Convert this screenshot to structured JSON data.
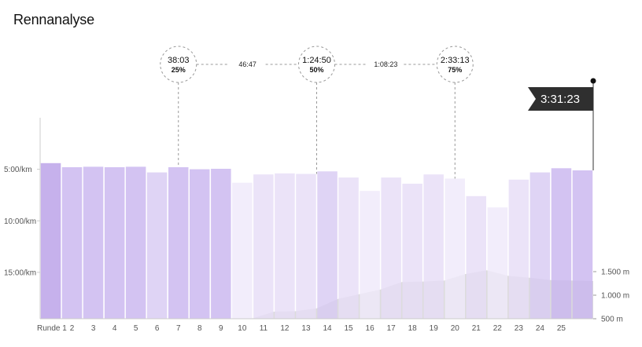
{
  "title": "Rennanalyse",
  "colors": {
    "bar_levels": [
      "#b9a0e8",
      "#c9b6ef",
      "#d8cbf3",
      "#e6ddf7",
      "#efe9fa"
    ],
    "elevation_fill": "#dcdcdc",
    "flag": "#2f2f2f",
    "axis": "#cccccc"
  },
  "chart_data": {
    "type": "bar",
    "title": "Rennanalyse",
    "categories": [
      "Runde 1",
      "2",
      "3",
      "4",
      "5",
      "6",
      "7",
      "8",
      "9",
      "10",
      "11",
      "12",
      "13",
      "14",
      "15",
      "16",
      "17",
      "18",
      "19",
      "20",
      "21",
      "22",
      "23",
      "24",
      "25",
      ""
    ],
    "x_tick_labels": [
      "Runde 1",
      "2",
      "3",
      "4",
      "5",
      "6",
      "7",
      "8",
      "9",
      "10",
      "11",
      "12",
      "13",
      "14",
      "15",
      "16",
      "17",
      "18",
      "19",
      "20",
      "21",
      "22",
      "23",
      "24",
      "25"
    ],
    "pace_axis": {
      "tick_labels": [
        "5:00/km",
        "10:00/km",
        "15:00/km"
      ],
      "tick_values": [
        5,
        10,
        15
      ],
      "range": [
        0,
        19.5
      ]
    },
    "pace_min_per_km": [
      4.4,
      4.8,
      4.75,
      4.8,
      4.75,
      5.3,
      4.8,
      5.0,
      4.95,
      6.3,
      5.5,
      5.4,
      5.45,
      5.2,
      5.8,
      7.1,
      5.8,
      6.4,
      5.5,
      5.9,
      7.6,
      8.7,
      6.0,
      5.3,
      4.9,
      5.1
    ],
    "bar_shade_level": [
      0,
      1,
      1,
      1,
      1,
      2,
      1,
      1,
      1,
      4,
      3,
      3,
      3,
      2,
      3,
      4,
      3,
      3,
      3,
      4,
      3,
      4,
      3,
      2,
      1,
      1
    ],
    "elevation_axis": {
      "tick_labels": [
        "1.500 m",
        "1.000 m",
        "500 m"
      ],
      "tick_values": [
        1500,
        1000,
        500
      ],
      "range": [
        500,
        1600
      ]
    },
    "elevation_m": [
      500,
      500,
      500,
      500,
      500,
      500,
      500,
      500,
      500,
      500,
      510,
      650,
      660,
      720,
      920,
      1020,
      1120,
      1280,
      1290,
      1310,
      1450,
      1530,
      1410,
      1370,
      1320,
      1310,
      1300
    ],
    "milestones": [
      {
        "time": "38:03",
        "percent": "25%",
        "lap": 7
      },
      {
        "time": "1:24:50",
        "percent": "50%",
        "lap": 13.5
      },
      {
        "time": "2:33:13",
        "percent": "75%",
        "lap": 20
      }
    ],
    "gaps": [
      "46:47",
      "1:08:23"
    ],
    "finish_time": "3:31:23",
    "grid": false,
    "legend": "none"
  }
}
